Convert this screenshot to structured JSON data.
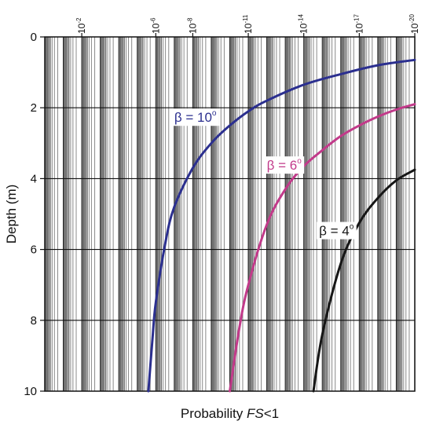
{
  "chart_data": {
    "type": "line",
    "xlabel_prefix": "Probability ",
    "xlabel_italic": "FS",
    "xlabel_suffix": "<1",
    "ylabel": "Depth (m)",
    "x_scale": "log",
    "x_direction": "decreasing",
    "xlim": [
      1,
      1e-20
    ],
    "ylim": [
      0,
      10
    ],
    "y_inverted": true,
    "grid": true,
    "x_ticks": [
      {
        "value": 0.01,
        "base": "10",
        "exp": "-2"
      },
      {
        "value": 1e-06,
        "base": "10",
        "exp": "-6"
      },
      {
        "value": 1e-08,
        "base": "10",
        "exp": "-8"
      },
      {
        "value": 1e-11,
        "base": "10",
        "exp": "-11"
      },
      {
        "value": 1e-14,
        "base": "10",
        "exp": "-14"
      },
      {
        "value": 1e-17,
        "base": "10",
        "exp": "-17"
      },
      {
        "value": 1e-20,
        "base": "10",
        "exp": "-20"
      }
    ],
    "y_ticks": [
      {
        "value": 0,
        "label": "0"
      },
      {
        "value": 2,
        "label": "2"
      },
      {
        "value": 4,
        "label": "4"
      },
      {
        "value": 6,
        "label": "6"
      },
      {
        "value": 8,
        "label": "8"
      },
      {
        "value": 10,
        "label": "10"
      }
    ],
    "series": [
      {
        "label": "β = 10°",
        "label_base": "β = 10",
        "label_sup": "o",
        "color": "#2b2f8f",
        "label_depth": 2.4,
        "label_prob": 1e-07,
        "points": [
          [
            1e-20,
            0.65
          ],
          [
            1e-18,
            0.8
          ],
          [
            1e-16,
            1.05
          ],
          [
            1e-14,
            1.35
          ],
          [
            1e-12,
            1.8
          ],
          [
            1e-11,
            2.1
          ],
          [
            1e-10,
            2.5
          ],
          [
            1e-09,
            3.0
          ],
          [
            1e-08,
            3.7
          ],
          [
            1e-07,
            4.8
          ],
          [
            3e-07,
            5.8
          ],
          [
            1e-06,
            7.5
          ],
          [
            1.5e-06,
            8.5
          ],
          [
            2.5e-06,
            10
          ]
        ]
      },
      {
        "label": "β = 6°",
        "label_base": "β = 6",
        "label_sup": "o",
        "color": "#c23a8a",
        "label_depth": 3.75,
        "label_prob": 1e-12,
        "points": [
          [
            1e-20,
            1.9
          ],
          [
            1e-19,
            2.05
          ],
          [
            1e-18,
            2.25
          ],
          [
            1e-17,
            2.5
          ],
          [
            1e-16,
            2.8
          ],
          [
            1e-15,
            3.2
          ],
          [
            1e-14,
            3.65
          ],
          [
            1e-13,
            4.3
          ],
          [
            1e-12,
            5.3
          ],
          [
            1e-11,
            7.0
          ],
          [
            3e-11,
            8.2
          ],
          [
            1e-10,
            10
          ]
        ]
      },
      {
        "label": "β = 4°",
        "label_base": "β = 4",
        "label_sup": "o",
        "color": "#161616",
        "label_depth": 5.6,
        "label_prob": 1.5e-15,
        "points": [
          [
            1e-20,
            3.75
          ],
          [
            1e-19,
            4.05
          ],
          [
            1e-18,
            4.55
          ],
          [
            1e-17,
            5.25
          ],
          [
            1e-16,
            6.4
          ],
          [
            1e-15,
            8.4
          ],
          [
            3e-15,
            10
          ]
        ]
      }
    ]
  }
}
